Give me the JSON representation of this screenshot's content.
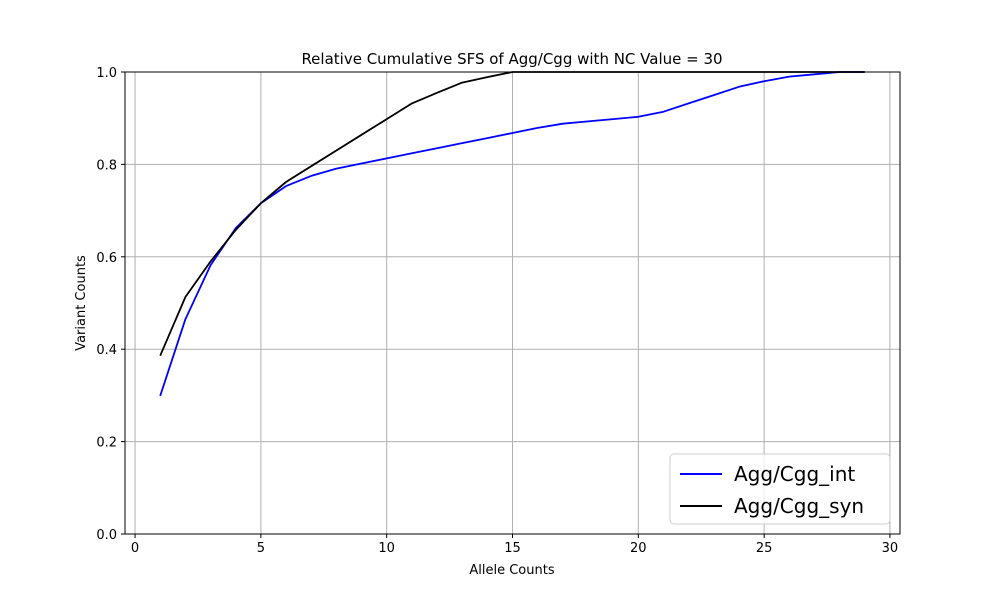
{
  "chart_data": {
    "type": "line",
    "title": "Relative Cumulative SFS of Agg/Cgg with NC Value = 30",
    "xlabel": "Allele Counts",
    "ylabel": "Variant Counts",
    "xlim": [
      -0.4,
      30.4
    ],
    "ylim": [
      0.0,
      1.0
    ],
    "xticks": [
      0,
      5,
      10,
      15,
      20,
      25,
      30
    ],
    "yticks": [
      0.0,
      0.2,
      0.4,
      0.6,
      0.8,
      1.0
    ],
    "xtick_labels": [
      "0",
      "5",
      "10",
      "15",
      "20",
      "25",
      "30"
    ],
    "ytick_labels": [
      "0.0",
      "0.2",
      "0.4",
      "0.6",
      "0.8",
      "1.0"
    ],
    "grid": true,
    "legend": {
      "location": "lower-right"
    },
    "series": [
      {
        "name": "Agg/Cgg_int",
        "color": "#0000ff",
        "x": [
          1,
          2,
          3,
          4,
          5,
          6,
          7,
          8,
          9,
          10,
          11,
          12,
          13,
          14,
          15,
          16,
          17,
          18,
          19,
          20,
          21,
          22,
          23,
          24,
          25,
          26,
          27,
          28,
          29
        ],
        "y": [
          0.299,
          0.465,
          0.582,
          0.662,
          0.716,
          0.753,
          0.775,
          0.791,
          0.802,
          0.813,
          0.824,
          0.835,
          0.846,
          0.857,
          0.868,
          0.879,
          0.888,
          0.893,
          0.898,
          0.903,
          0.914,
          0.932,
          0.95,
          0.968,
          0.98,
          0.99,
          0.995,
          1.0,
          1.0
        ]
      },
      {
        "name": "Agg/Cgg_syn",
        "color": "#000000",
        "x": [
          1,
          2,
          3,
          4,
          5,
          6,
          7,
          8,
          9,
          10,
          11,
          12,
          13,
          14,
          15,
          16,
          17,
          18,
          19,
          20,
          21,
          22,
          23,
          24,
          25,
          26,
          27,
          28,
          29
        ],
        "y": [
          0.386,
          0.513,
          0.59,
          0.658,
          0.716,
          0.762,
          0.796,
          0.83,
          0.864,
          0.898,
          0.932,
          0.955,
          0.977,
          0.989,
          1.0,
          1.0,
          1.0,
          1.0,
          1.0,
          1.0,
          1.0,
          1.0,
          1.0,
          1.0,
          1.0,
          1.0,
          1.0,
          1.0,
          1.0
        ]
      }
    ]
  }
}
